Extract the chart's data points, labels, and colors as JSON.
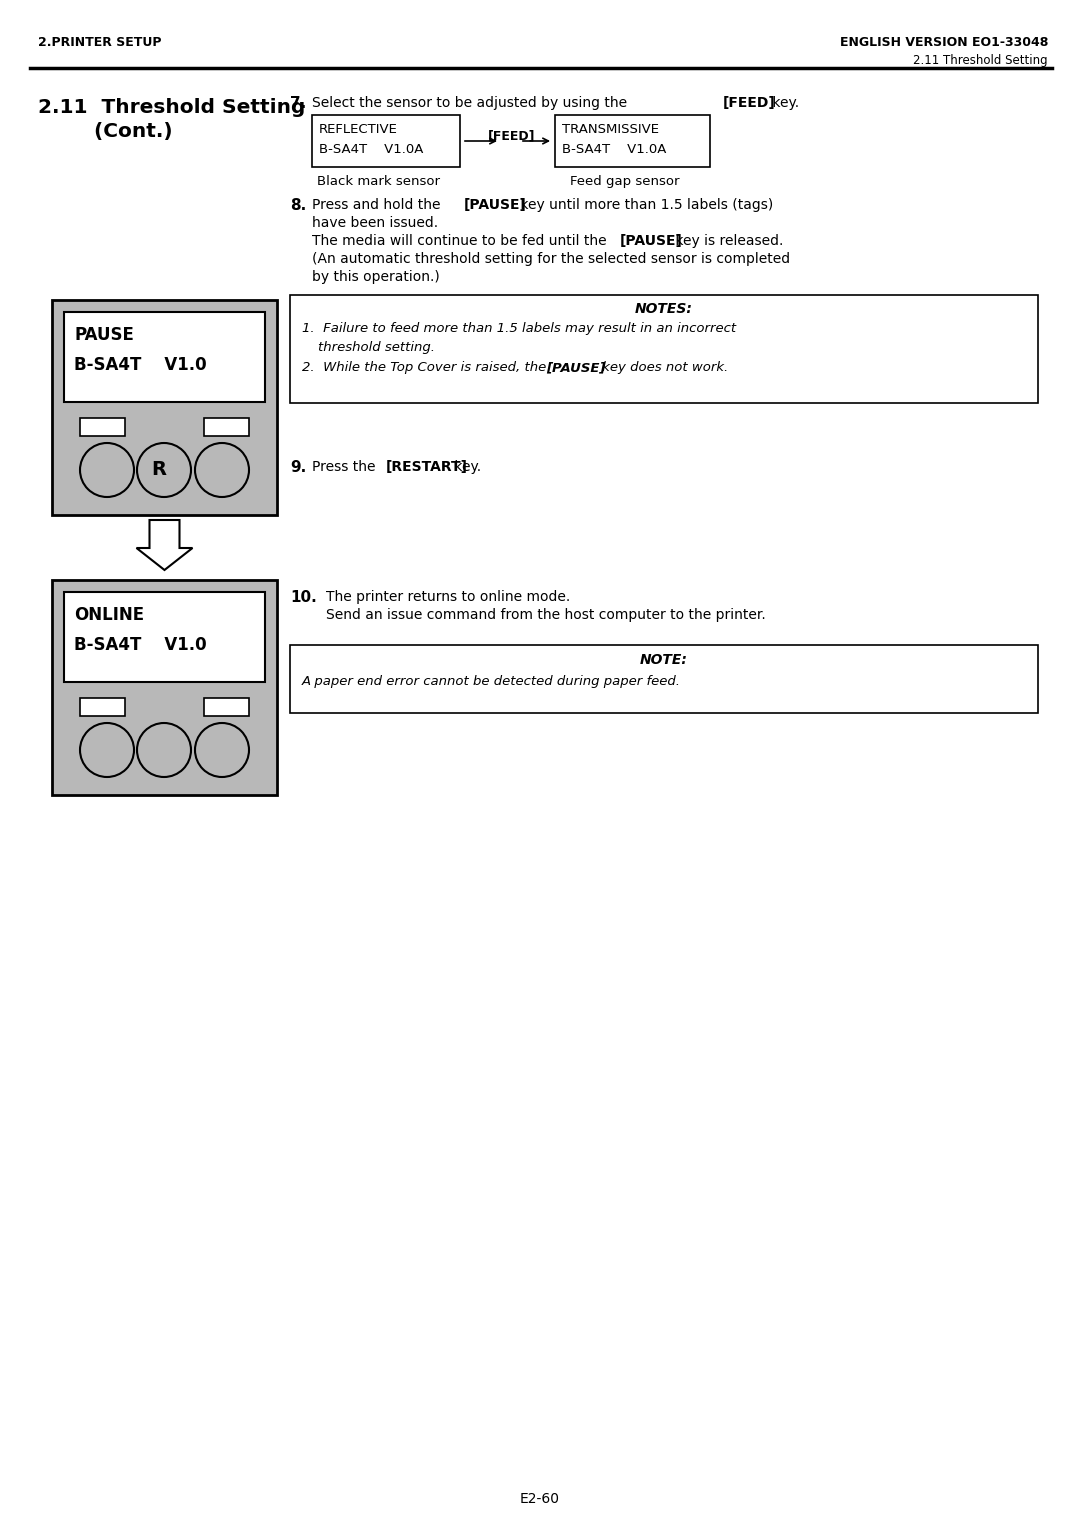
{
  "header_left": "2.PRINTER SETUP",
  "header_right": "ENGLISH VERSION EO1-33048",
  "subheader_right": "2.11 Threshold Setting",
  "section_title_line1": "2.11  Threshold Setting",
  "section_title_line2": "        (Cont.)",
  "box1_line1": "REFLECTIVE",
  "box1_line2": "B-SA4T    V1.0A",
  "feed_label": "[FEED]",
  "box2_line1": "TRANSMISSIVE",
  "box2_line2": "B-SA4T    V1.0A",
  "label1": "Black mark sensor",
  "label2": "Feed gap sensor",
  "display1_line1": "PAUSE",
  "display1_line2": "B-SA4T    V1.0",
  "display2_line1": "ONLINE",
  "display2_line2": "B-SA4T    V1.0",
  "step10_text1": "The printer returns to online mode.",
  "step10_text2": "Send an issue command from the host computer to the printer.",
  "note_single_text": "A paper end error cannot be detected during paper feed.",
  "page_number": "E2-60",
  "bg_color": "#ffffff",
  "device_bg": "#b8b8b8",
  "text_color": "#000000"
}
